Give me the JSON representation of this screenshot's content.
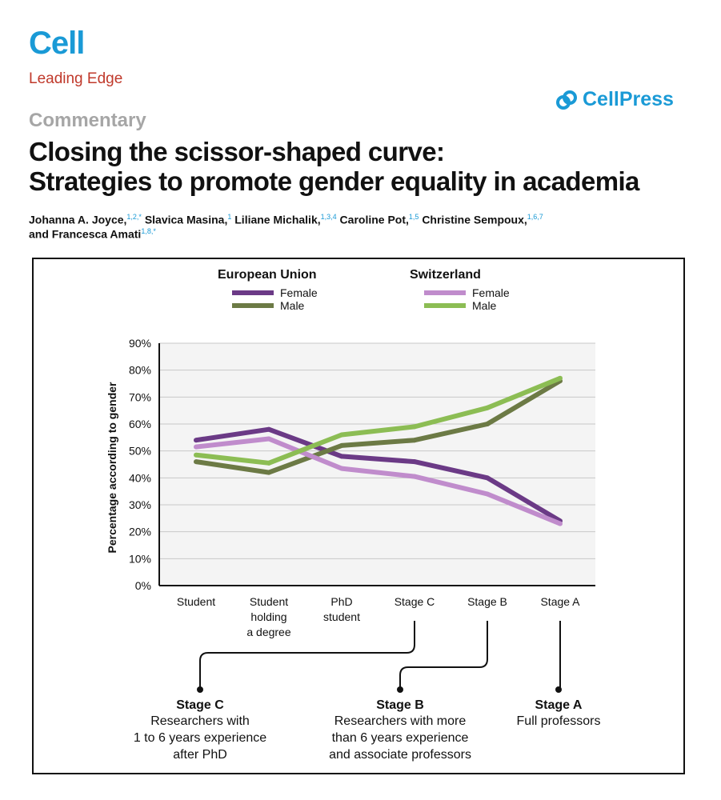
{
  "header": {
    "journal": "Cell",
    "section": "Leading Edge",
    "publisher": "CellPress",
    "category": "Commentary",
    "title_line1": "Closing the scissor-shaped curve:",
    "title_line2": "Strategies to promote gender equality in academia",
    "authors": [
      {
        "name": "Johanna A. Joyce,",
        "aff": "1,2,*"
      },
      {
        "name": "Slavica Masina,",
        "aff": "1"
      },
      {
        "name": "Liliane Michalik,",
        "aff": "1,3,4"
      },
      {
        "name": "Caroline Pot,",
        "aff": "1,5"
      },
      {
        "name": "Christine Sempoux,",
        "aff": "1,6,7"
      },
      {
        "name": "and Francesca Amati",
        "aff": "1,8,*"
      }
    ]
  },
  "colors": {
    "brand_blue": "#1a9ad6",
    "section_red": "#c0392b",
    "eu_female": "#6b3a86",
    "eu_male": "#6c7a45",
    "ch_female": "#c08ccc",
    "ch_male": "#8cbd54",
    "plot_bg": "#f4f4f4",
    "grid": "#c8c8c8"
  },
  "chart_data": {
    "type": "line",
    "ylabel": "Percentage according to gender",
    "xlabel": "",
    "ylim": [
      0,
      90
    ],
    "yticks": [
      "0%",
      "10%",
      "20%",
      "30%",
      "40%",
      "50%",
      "60%",
      "70%",
      "80%",
      "90%"
    ],
    "categories": [
      [
        "Student"
      ],
      [
        "Student",
        "holding",
        "a degree"
      ],
      [
        "PhD",
        "student"
      ],
      [
        "Stage C"
      ],
      [
        "Stage B"
      ],
      [
        "Stage A"
      ]
    ],
    "grid": true,
    "legend": {
      "placement": "top",
      "groups": [
        {
          "title": "European Union",
          "entries": [
            "Female",
            "Male"
          ]
        },
        {
          "title": "Switzerland",
          "entries": [
            "Female",
            "Male"
          ]
        }
      ]
    },
    "series": [
      {
        "name": "Female",
        "group": "European Union",
        "color_key": "eu_female",
        "values": [
          54,
          58,
          48,
          46,
          40,
          24
        ]
      },
      {
        "name": "Male",
        "group": "European Union",
        "color_key": "eu_male",
        "values": [
          46,
          42,
          52,
          54,
          60,
          76
        ]
      },
      {
        "name": "Female",
        "group": "Switzerland",
        "color_key": "ch_female",
        "values": [
          51.5,
          54.5,
          43.5,
          40.5,
          34,
          23
        ]
      },
      {
        "name": "Male",
        "group": "Switzerland",
        "color_key": "ch_male",
        "values": [
          48.5,
          45.5,
          56,
          59,
          66,
          77
        ]
      }
    ],
    "annotations": [
      {
        "target": "Stage C",
        "title": "Stage C",
        "lines": [
          "Researchers with",
          "1 to 6 years experience",
          "after PhD"
        ]
      },
      {
        "target": "Stage B",
        "title": "Stage B",
        "lines": [
          "Researchers with more",
          "than 6 years experience",
          "and associate professors"
        ]
      },
      {
        "target": "Stage A",
        "title": "Stage A",
        "lines": [
          "Full professors"
        ]
      }
    ]
  }
}
